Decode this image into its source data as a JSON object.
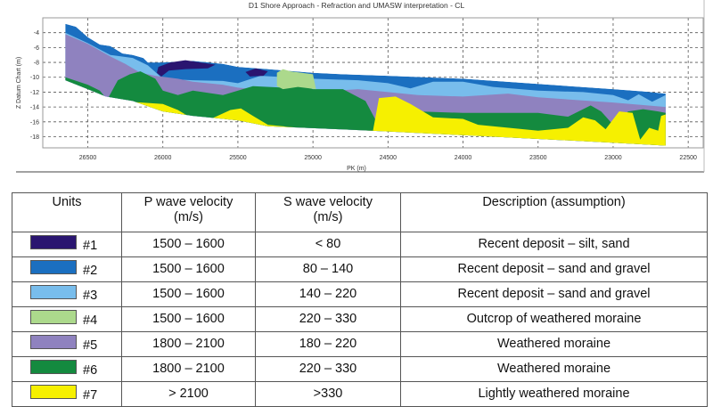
{
  "chart_data": {
    "type": "area",
    "title": "D1 Shore Approach - Refraction and UMASW interpretation - CL",
    "xlabel": "PK (m)",
    "ylabel": "Z Datum Chart (m)",
    "xlim": [
      26800,
      22400
    ],
    "ylim": [
      -19.5,
      -2
    ],
    "x_ticks": [
      26500,
      26000,
      25500,
      25000,
      24500,
      24000,
      23500,
      23000,
      22500
    ],
    "y_ticks": [
      -4,
      -6,
      -8,
      -10,
      -12,
      -14,
      -16,
      -18
    ],
    "grid": true,
    "section_top": [
      [
        26650,
        -2.8
      ],
      [
        26580,
        -3.2
      ],
      [
        26500,
        -4.6
      ],
      [
        26420,
        -5.6
      ],
      [
        26350,
        -5.8
      ],
      [
        26270,
        -6.8
      ],
      [
        26200,
        -7.0
      ],
      [
        26130,
        -7.4
      ],
      [
        26100,
        -8.0
      ],
      [
        26000,
        -8.0
      ],
      [
        25800,
        -7.8
      ],
      [
        25600,
        -8.2
      ],
      [
        25500,
        -8.6
      ],
      [
        25300,
        -8.9
      ],
      [
        25000,
        -9.4
      ],
      [
        24800,
        -9.6
      ],
      [
        24500,
        -9.8
      ],
      [
        24000,
        -10.2
      ],
      [
        23500,
        -10.9
      ],
      [
        23000,
        -11.6
      ],
      [
        22800,
        -11.9
      ],
      [
        22650,
        -12.2
      ]
    ],
    "section_bottom": [
      [
        26650,
        -10.4
      ],
      [
        26500,
        -11.6
      ],
      [
        26380,
        -12.6
      ],
      [
        26200,
        -13.2
      ],
      [
        26000,
        -14.6
      ],
      [
        25800,
        -15.2
      ],
      [
        25500,
        -15.8
      ],
      [
        25300,
        -16.6
      ],
      [
        24830,
        -17.0
      ],
      [
        24500,
        -17.3
      ],
      [
        24000,
        -17.8
      ],
      [
        23500,
        -18.3
      ],
      [
        23000,
        -18.8
      ],
      [
        22650,
        -19.2
      ]
    ],
    "series": [
      {
        "name": "#2",
        "color": "#1b6fc0",
        "top": "section"
      },
      {
        "name": "#3",
        "color": "#78bdec",
        "top": [
          [
            26650,
            -4.0
          ],
          [
            26500,
            -5.4
          ],
          [
            26350,
            -7.0
          ],
          [
            26200,
            -7.4
          ],
          [
            26100,
            -8.4
          ],
          [
            26000,
            -10.2
          ],
          [
            25800,
            -10.4
          ],
          [
            25600,
            -10.5
          ],
          [
            25500,
            -10.8
          ],
          [
            25350,
            -9.8
          ],
          [
            25000,
            -10.2
          ],
          [
            24700,
            -10.4
          ],
          [
            24500,
            -10.8
          ],
          [
            24350,
            -11.5
          ],
          [
            24200,
            -10.6
          ],
          [
            24000,
            -10.6
          ],
          [
            23800,
            -11.3
          ],
          [
            23500,
            -11.8
          ],
          [
            23200,
            -12.0
          ],
          [
            23000,
            -12.4
          ],
          [
            22900,
            -13.1
          ],
          [
            22830,
            -12.3
          ],
          [
            22740,
            -13.3
          ],
          [
            22650,
            -12.4
          ]
        ]
      },
      {
        "name": "#5",
        "color": "#8f82bf",
        "top": [
          [
            26650,
            -4.2
          ],
          [
            26500,
            -5.5
          ],
          [
            26350,
            -7.2
          ],
          [
            26250,
            -8.2
          ],
          [
            26150,
            -9.4
          ],
          [
            26050,
            -9.8
          ],
          [
            25900,
            -10.2
          ],
          [
            25800,
            -10.6
          ],
          [
            25600,
            -11.0
          ],
          [
            25500,
            -11.4
          ],
          [
            25300,
            -11.8
          ],
          [
            25000,
            -12.0
          ],
          [
            24700,
            -11.6
          ],
          [
            24500,
            -12.0
          ],
          [
            24300,
            -12.4
          ],
          [
            24000,
            -12.6
          ],
          [
            23700,
            -12.2
          ],
          [
            23500,
            -12.7
          ],
          [
            23000,
            -13.4
          ],
          [
            22650,
            -14.0
          ]
        ]
      },
      {
        "name": "#6",
        "color": "#148a3f",
        "top": [
          [
            26650,
            -10.0
          ],
          [
            26500,
            -11.0
          ],
          [
            26420,
            -11.8
          ],
          [
            26370,
            -13.0
          ],
          [
            26300,
            -10.4
          ],
          [
            26220,
            -9.6
          ],
          [
            26150,
            -9.2
          ],
          [
            26050,
            -10.2
          ],
          [
            26000,
            -11.8
          ],
          [
            25900,
            -12.4
          ],
          [
            25800,
            -11.8
          ],
          [
            25600,
            -12.4
          ],
          [
            25400,
            -11.2
          ],
          [
            25200,
            -11.4
          ],
          [
            25100,
            -11.0
          ],
          [
            25000,
            -11.6
          ],
          [
            24800,
            -11.6
          ],
          [
            24650,
            -13.2
          ],
          [
            24560,
            -16.6
          ],
          [
            24500,
            -14.4
          ],
          [
            24300,
            -14.6
          ],
          [
            24000,
            -14.8
          ],
          [
            23500,
            -14.8
          ],
          [
            23300,
            -15.3
          ],
          [
            23150,
            -13.8
          ],
          [
            23080,
            -14.6
          ],
          [
            23000,
            -16.4
          ],
          [
            22900,
            -14.6
          ],
          [
            22800,
            -14.3
          ],
          [
            22700,
            -14.6
          ],
          [
            22650,
            -14.8
          ]
        ]
      },
      {
        "name": "#7",
        "color": "#f6f000",
        "top": [
          [
            26650,
            -20
          ],
          [
            26400,
            -20
          ],
          [
            26300,
            -13.2
          ],
          [
            26000,
            -13.6
          ],
          [
            25900,
            -14.4
          ],
          [
            25800,
            -15.6
          ],
          [
            25700,
            -15.8
          ],
          [
            25550,
            -14.4
          ],
          [
            25480,
            -14.2
          ],
          [
            25400,
            -15.2
          ],
          [
            25300,
            -16.4
          ],
          [
            25000,
            -17.0
          ],
          [
            24600,
            -17.2
          ],
          [
            24560,
            -12.8
          ],
          [
            24450,
            -12.6
          ],
          [
            24350,
            -13.6
          ],
          [
            24200,
            -15.4
          ],
          [
            24000,
            -15.6
          ],
          [
            23900,
            -16.4
          ],
          [
            23500,
            -17.2
          ],
          [
            23300,
            -16.8
          ],
          [
            23200,
            -15.4
          ],
          [
            23120,
            -15.8
          ],
          [
            23050,
            -17.0
          ],
          [
            22960,
            -14.6
          ],
          [
            22870,
            -14.8
          ],
          [
            22820,
            -18.4
          ],
          [
            22760,
            -16.8
          ],
          [
            22700,
            -17.2
          ],
          [
            22680,
            -15.2
          ],
          [
            22650,
            -15.0
          ]
        ]
      },
      {
        "name": "#1",
        "color": "#2a1570",
        "patches": [
          [
            [
              26030,
              -8.6
            ],
            [
              25950,
              -8.0
            ],
            [
              25850,
              -7.7
            ],
            [
              25750,
              -8.0
            ],
            [
              25650,
              -8.3
            ],
            [
              25700,
              -8.8
            ],
            [
              25850,
              -8.9
            ],
            [
              25960,
              -9.1
            ],
            [
              26010,
              -9.9
            ],
            [
              26040,
              -9.4
            ]
          ],
          [
            [
              25450,
              -9.3
            ],
            [
              25380,
              -8.8
            ],
            [
              25300,
              -9.2
            ],
            [
              25330,
              -9.8
            ],
            [
              25420,
              -9.9
            ]
          ]
        ]
      },
      {
        "name": "#4",
        "color": "#acd98c",
        "patches": [
          [
            [
              25240,
              -9.4
            ],
            [
              25200,
              -8.9
            ],
            [
              25150,
              -9.2
            ],
            [
              25000,
              -9.6
            ],
            [
              24980,
              -11.6
            ],
            [
              25100,
              -11.3
            ],
            [
              25200,
              -11.6
            ],
            [
              25240,
              -11.2
            ]
          ]
        ]
      }
    ]
  },
  "table": {
    "headers": {
      "units": "Units",
      "p_wave": "P wave velocity",
      "p_unit": "(m/s)",
      "s_wave": "S wave velocity",
      "s_unit": "(m/s)",
      "description": "Description (assumption)"
    },
    "rows": [
      {
        "unit": "#1",
        "color": "#2a1570",
        "p": "1500 – 1600",
        "s": "< 80",
        "desc": "Recent deposit – silt, sand"
      },
      {
        "unit": "#2",
        "color": "#1b6fc0",
        "p": "1500 – 1600",
        "s": "80 – 140",
        "desc": "Recent deposit – sand and gravel"
      },
      {
        "unit": "#3",
        "color": "#78bdec",
        "p": "1500 – 1600",
        "s": "140 – 220",
        "desc": "Recent deposit – sand and gravel"
      },
      {
        "unit": "#4",
        "color": "#acd98c",
        "p": "1500 – 1600",
        "s": "220 – 330",
        "desc": "Outcrop of weathered moraine"
      },
      {
        "unit": "#5",
        "color": "#8f82bf",
        "p": "1800 – 2100",
        "s": "180 – 220",
        "desc": "Weathered moraine"
      },
      {
        "unit": "#6",
        "color": "#148a3f",
        "p": "1800 – 2100",
        "s": "220 – 330",
        "desc": "Weathered moraine"
      },
      {
        "unit": "#7",
        "color": "#f6f000",
        "p": "> 2100",
        "s": ">330",
        "desc": "Lightly weathered moraine"
      }
    ]
  }
}
